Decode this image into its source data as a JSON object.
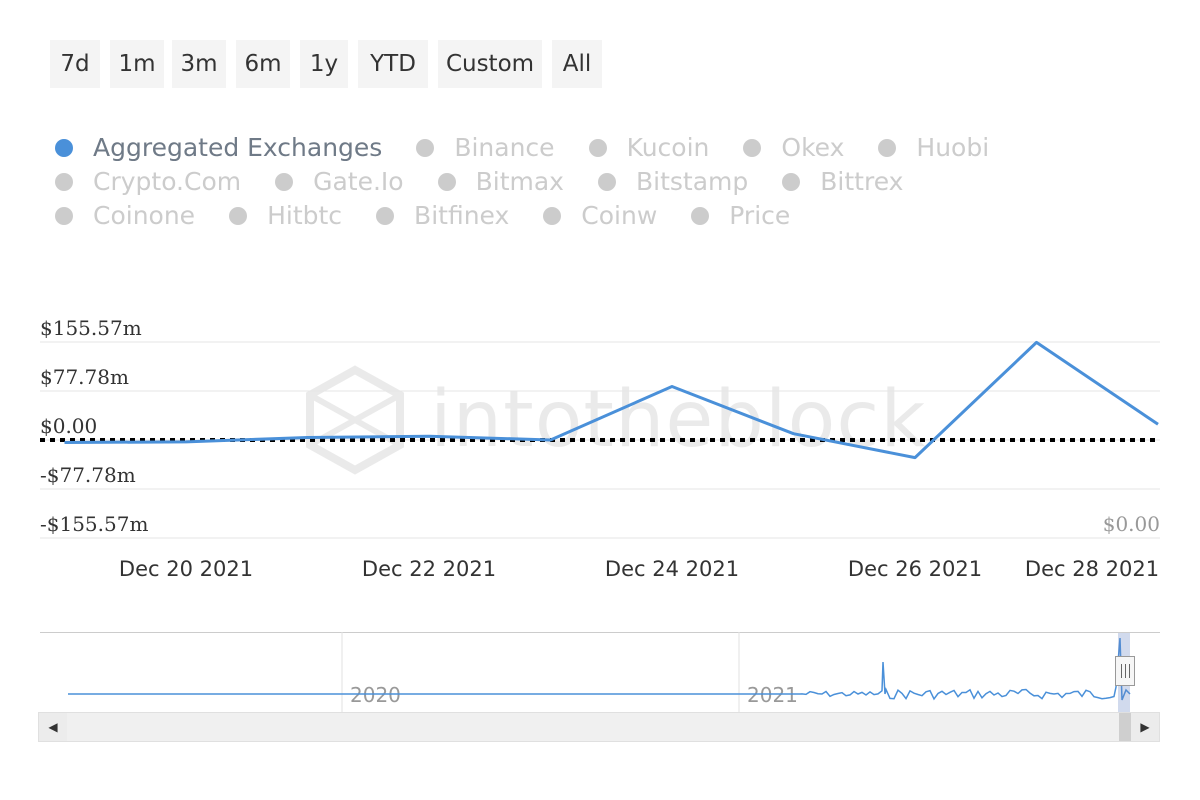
{
  "range_selector": {
    "buttons": [
      {
        "label": "7d"
      },
      {
        "label": "1m"
      },
      {
        "label": "3m"
      },
      {
        "label": "6m"
      },
      {
        "label": "1y"
      },
      {
        "label": "YTD"
      },
      {
        "label": "Custom"
      },
      {
        "label": "All"
      }
    ]
  },
  "legend": {
    "rows": [
      [
        {
          "label": "Aggregated Exchanges",
          "active": true
        },
        {
          "label": "Binance",
          "active": false
        },
        {
          "label": "Kucoin",
          "active": false
        },
        {
          "label": "Okex",
          "active": false
        },
        {
          "label": "Huobi",
          "active": false
        }
      ],
      [
        {
          "label": "Crypto.Com",
          "active": false
        },
        {
          "label": "Gate.Io",
          "active": false
        },
        {
          "label": "Bitmax",
          "active": false
        },
        {
          "label": "Bitstamp",
          "active": false
        },
        {
          "label": "Bittrex",
          "active": false
        }
      ],
      [
        {
          "label": "Coinone",
          "active": false
        },
        {
          "label": "Hitbtc",
          "active": false
        },
        {
          "label": "Bitfinex",
          "active": false
        },
        {
          "label": "Coinw",
          "active": false
        },
        {
          "label": "Price",
          "active": false
        }
      ]
    ]
  },
  "colors": {
    "series": "#4a90d9",
    "legend_active_text": "#6f7a87",
    "legend_inactive": "#cccccc",
    "grid": "#e6e6e6"
  },
  "watermark": {
    "text": "intotheblock"
  },
  "navigator": {
    "labels": [
      "2020",
      "2021"
    ]
  },
  "icons": {
    "scroll_left": "left-arrow-icon",
    "scroll_right": "right-arrow-icon"
  },
  "chart_data": {
    "type": "line",
    "title": "",
    "x_ticks": [
      "Dec 20 2021",
      "Dec 22 2021",
      "Dec 24 2021",
      "Dec 26 2021",
      "Dec 28 2021"
    ],
    "y_ticks": [
      "$155.57m",
      "$77.78m",
      "$0.00",
      "-$77.78m",
      "-$155.57m"
    ],
    "y2_ticks": [
      "$0.00"
    ],
    "ylim": [
      -155.57,
      155.57
    ],
    "y_unit": "$m",
    "zero_line": "dashed black",
    "series": [
      {
        "name": "Aggregated Exchanges",
        "x": [
          "2021-12-19",
          "2021-12-20",
          "2021-12-21",
          "2021-12-22",
          "2021-12-23",
          "2021-12-24",
          "2021-12-25",
          "2021-12-26",
          "2021-12-27",
          "2021-12-28"
        ],
        "y": [
          -4,
          -3,
          4,
          6,
          0,
          85,
          10,
          -28,
          155,
          25
        ]
      }
    ],
    "grid": true,
    "legend_position": "top"
  }
}
